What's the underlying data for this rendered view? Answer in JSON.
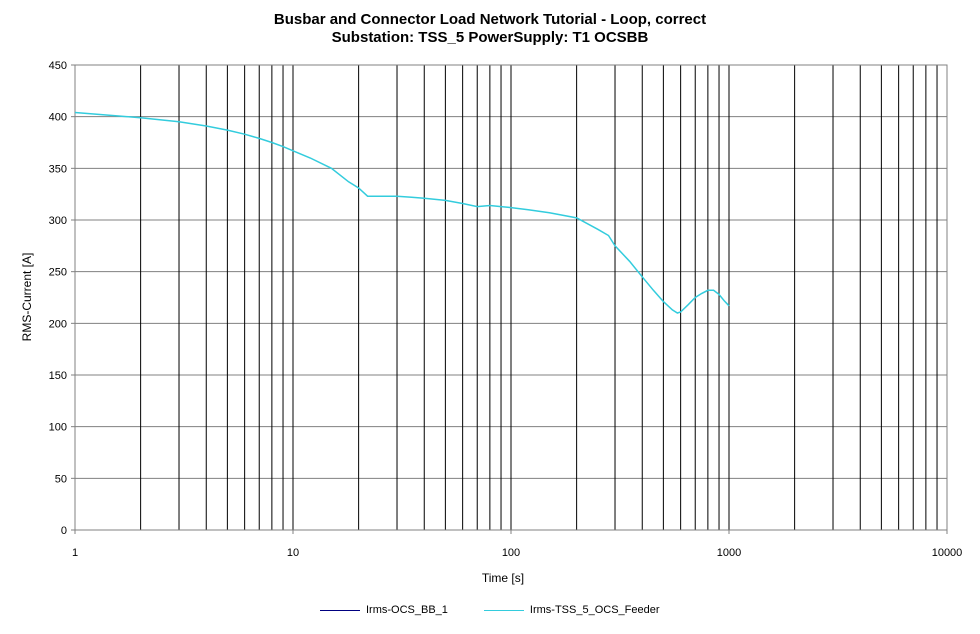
{
  "chart_data": {
    "type": "line",
    "title": "Busbar and Connector Load Network Tutorial - Loop, correct",
    "subtitle": "Substation: TSS_5 PowerSupply: T1 OCSBB",
    "xlabel": "Time [s]",
    "ylabel": "RMS-Current  [A]",
    "xscale": "log",
    "xlim": [
      1,
      10000
    ],
    "ylim": [
      0,
      450
    ],
    "xticks": [
      "1",
      "10",
      "100",
      "1000",
      "10000"
    ],
    "yticks": [
      "0",
      "50",
      "100",
      "150",
      "200",
      "250",
      "300",
      "350",
      "400",
      "450"
    ],
    "grid": true,
    "legend_position": "bottom",
    "series": [
      {
        "name": "Irms-OCS_BB_1",
        "color": "#000080",
        "x": [],
        "y": []
      },
      {
        "name": "Irms-TSS_5_OCS_Feeder",
        "color": "#33CCDD",
        "x": [
          1,
          2,
          3,
          4,
          5,
          6,
          7,
          8,
          9,
          10,
          12,
          15,
          18,
          20,
          22,
          25,
          30,
          35,
          40,
          50,
          60,
          70,
          80,
          90,
          100,
          120,
          150,
          200,
          250,
          280,
          300,
          350,
          400,
          450,
          500,
          550,
          580,
          600,
          650,
          700,
          750,
          800,
          850,
          900,
          950,
          1000
        ],
        "y": [
          404,
          399,
          395,
          391,
          387,
          383,
          379,
          375,
          371,
          367,
          360,
          350,
          337,
          331,
          323,
          323,
          323,
          322,
          321,
          319,
          316,
          313,
          314,
          313,
          312,
          310,
          307,
          302,
          291,
          285,
          275,
          260,
          245,
          232,
          221,
          213,
          210,
          211,
          218,
          225,
          229,
          232,
          232,
          228,
          222,
          217
        ]
      }
    ]
  }
}
